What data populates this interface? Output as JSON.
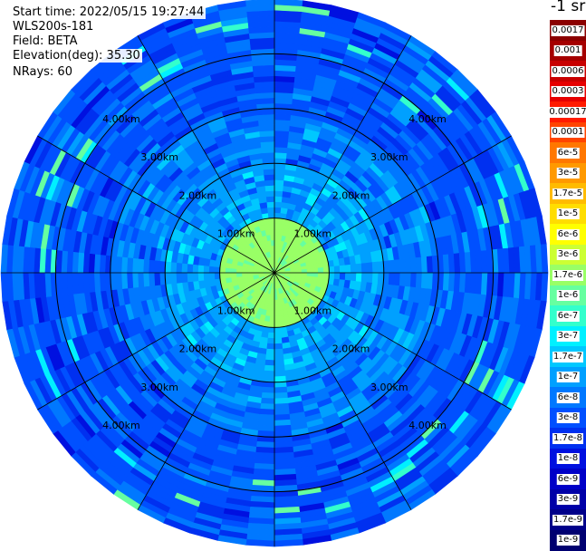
{
  "info": {
    "start_time": "Start time: 2022/05/15 19:27:44",
    "instrument": "WLS200s-181",
    "field": "Field: BETA",
    "elevation": "Elevation(deg): 35.30",
    "nrays": "NRays: 60"
  },
  "chart_data": {
    "type": "heatmap",
    "projection": "polar",
    "field": "BETA",
    "units": "-1 sr",
    "n_rays": 60,
    "range_rings_km": [
      1.0,
      2.0,
      3.0,
      4.0
    ],
    "range_ring_labels": [
      "1.00km",
      "2.00km",
      "3.00km",
      "4.00km"
    ],
    "max_range_km": 5.0,
    "spokes_deg": [
      0,
      30,
      60,
      90,
      120,
      150,
      180,
      210,
      240,
      270,
      300,
      330
    ],
    "colorbar": {
      "title": "-1 sr",
      "labels": [
        "0.0017",
        "0.001",
        "0.0006",
        "0.0003",
        "0.00017",
        "0.0001",
        "6e-5",
        "3e-5",
        "1.7e-5",
        "1e-5",
        "6e-6",
        "3e-6",
        "1.7e-6",
        "1e-6",
        "6e-7",
        "3e-7",
        "1.7e-7",
        "1e-7",
        "6e-8",
        "3e-8",
        "1.7e-8",
        "1e-8",
        "6e-9",
        "3e-9",
        "1.7e-9",
        "1e-9"
      ],
      "colors": [
        "#8b0000",
        "#a50000",
        "#c80000",
        "#e60000",
        "#ff1a00",
        "#ff4400",
        "#ff7700",
        "#ff9900",
        "#ffbb00",
        "#ffdd00",
        "#ffff00",
        "#ccff33",
        "#99ff66",
        "#66ffa0",
        "#33ffcc",
        "#00f0ff",
        "#00c8ff",
        "#00a0ff",
        "#0078ff",
        "#0050ff",
        "#0030f0",
        "#0010e0",
        "#0000c8",
        "#0000a8",
        "#00008a",
        "#000070"
      ]
    },
    "range_profile": [
      {
        "r_km": 0.5,
        "typical_value": "1.7e-6"
      },
      {
        "r_km": 1.5,
        "typical_value": "1e-7"
      },
      {
        "r_km": 2.5,
        "typical_value": "6e-8"
      },
      {
        "r_km": 3.5,
        "typical_value": "3e-8"
      },
      {
        "r_km": 4.5,
        "typical_value": "3e-8"
      }
    ]
  }
}
